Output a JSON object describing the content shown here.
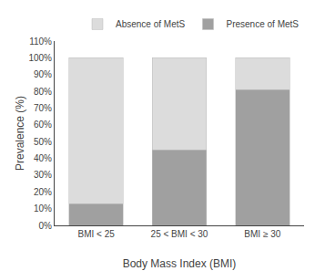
{
  "chart_data": {
    "type": "bar",
    "stacked": true,
    "categories": [
      "BMI < 25",
      "25 < BMI < 30",
      "BMI ≥ 30"
    ],
    "series": [
      {
        "name": "Presence of MetS",
        "color": "#a0a0a0",
        "values": [
          13,
          45,
          81
        ]
      },
      {
        "name": "Absence of MetS",
        "color": "#dcdcdc",
        "values": [
          87,
          55,
          19
        ]
      }
    ],
    "xlabel": "Body Mass Index (BMI)",
    "ylabel": "Prevalence (%)",
    "ylim": [
      0,
      110
    ],
    "yticks": [
      {
        "value": 0,
        "label": "0%"
      },
      {
        "value": 10,
        "label": "10%"
      },
      {
        "value": 20,
        "label": "20%"
      },
      {
        "value": 30,
        "label": "30%"
      },
      {
        "value": 40,
        "label": "40%"
      },
      {
        "value": 50,
        "label": "50%"
      },
      {
        "value": 60,
        "label": "60%"
      },
      {
        "value": 70,
        "label": "70%"
      },
      {
        "value": 80,
        "label": "80%"
      },
      {
        "value": 90,
        "label": "90%"
      },
      {
        "value": 100,
        "label": "100%"
      },
      {
        "value": 110,
        "label": "110%"
      }
    ],
    "grid": false,
    "legend": "upper right"
  }
}
